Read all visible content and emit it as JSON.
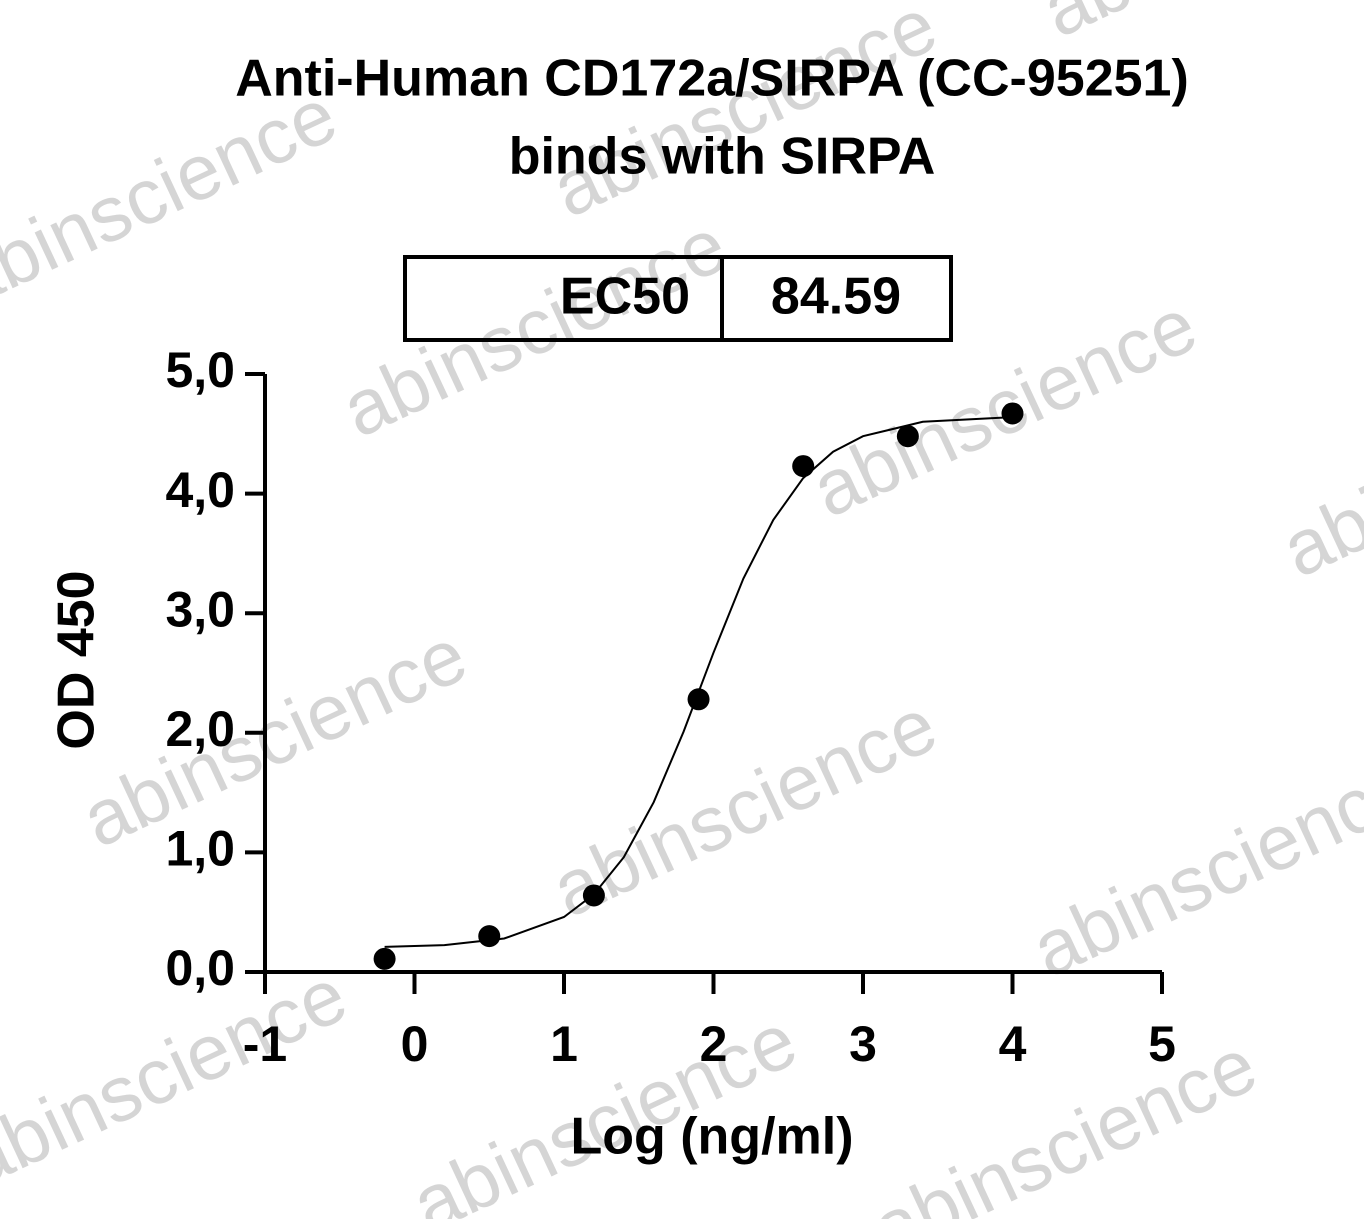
{
  "watermark": "abinscience",
  "chart_data": {
    "type": "scatter",
    "title": [
      "Anti-Human CD172a/SIRPA (CC-95251)",
      "binds with SIRPA"
    ],
    "ec50": {
      "label": "EC50",
      "value": 84.59
    },
    "x_label": "Log (ng/ml)",
    "y_label": "OD 450",
    "x": [
      -0.2,
      0.5,
      1.2,
      1.9,
      2.6,
      3.3,
      4.0
    ],
    "values": [
      0.11,
      0.3,
      0.64,
      2.28,
      4.23,
      4.48,
      4.67
    ],
    "color": "#000000",
    "fit": {
      "x": [
        -0.2,
        0.2,
        0.6,
        1.0,
        1.2,
        1.4,
        1.6,
        1.8,
        2.0,
        2.2,
        2.4,
        2.6,
        2.8,
        3.0,
        3.4,
        4.0
      ],
      "values": [
        0.21,
        0.225,
        0.28,
        0.46,
        0.65,
        0.96,
        1.42,
        2.01,
        2.67,
        3.29,
        3.78,
        4.13,
        4.35,
        4.48,
        4.6,
        4.64
      ]
    },
    "xlim": [
      -1,
      5
    ],
    "xticks": [
      -1,
      0,
      1,
      2,
      3,
      4,
      5
    ],
    "ylim": [
      0,
      5
    ],
    "yticks": [
      {
        "value": 0,
        "label": "0,0"
      },
      {
        "value": 1,
        "label": "1,0"
      },
      {
        "value": 2,
        "label": "2,0"
      },
      {
        "value": 3,
        "label": "3,0"
      },
      {
        "value": 4,
        "label": "4,0"
      },
      {
        "value": 5,
        "label": "5,0"
      }
    ]
  }
}
